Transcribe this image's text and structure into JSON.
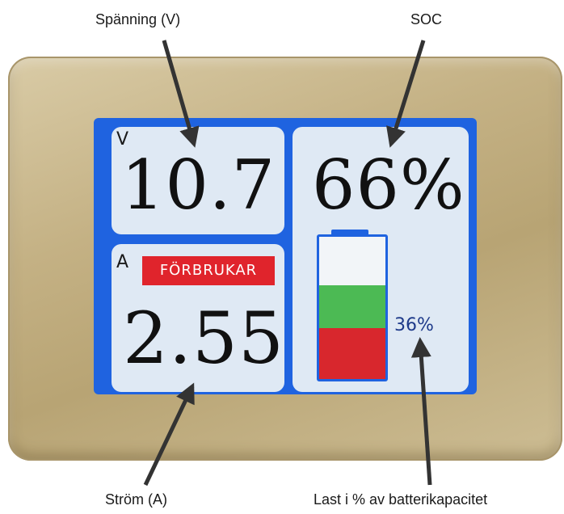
{
  "callouts": {
    "voltage": "Spänning (V)",
    "soc": "SOC",
    "current": "Ström (A)",
    "load": "Last i % av batterikapacitet"
  },
  "display": {
    "voltage_unit": "V",
    "voltage_value": "10.7",
    "soc_value": "66%",
    "current_unit": "A",
    "current_status": "FÖRBRUKAR",
    "current_value": "2.55",
    "load_value": "36%",
    "battery": {
      "soc_fraction": 0.66,
      "load_fraction": 0.36
    }
  },
  "colors": {
    "screen_background": "#1f63e0",
    "panel_background": "#dfe9f4",
    "status_badge": "#e0242c",
    "battery_green": "#4cba54",
    "battery_red": "#d8272d",
    "bezel": "#c4b184"
  }
}
